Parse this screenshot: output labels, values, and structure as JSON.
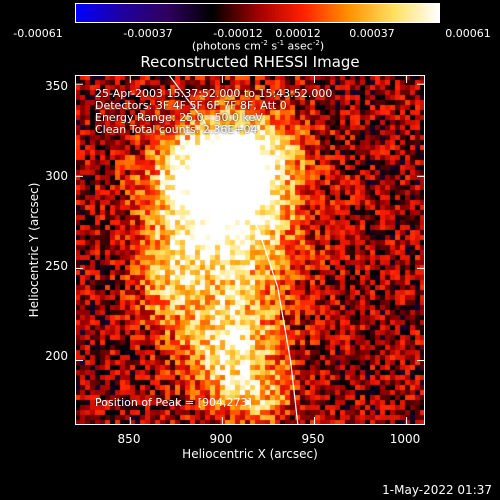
{
  "colorbar": {
    "ticks": [
      "-0.00061",
      "-0.00037",
      "-0.00012",
      "0.00012",
      "0.00037",
      "0.00061"
    ],
    "unit_prefix": "(photons cm",
    "unit_exp1": "-2",
    "unit_mid1": " s",
    "unit_exp2": "-1",
    "unit_mid2": " asec",
    "unit_exp3": "-2",
    "unit_suffix": ")",
    "stops": [
      "#0000ff",
      "#2000a0",
      "#300060",
      "#000000",
      "#a00000",
      "#ff2000",
      "#ff9000",
      "#ffe060",
      "#ffffff"
    ]
  },
  "info": {
    "line1": "25-Apr-2003 15:37:52.000 to 15:43:52.000",
    "line2": "Detectors: 3F 4F 5F 6F 7F 8F, Att 0",
    "line3": "Energy Range: 25.0 - 50.0 keV",
    "line4": "Clean   Total counts: 2.36E+04",
    "peak": "Position of Peak = [904,273]"
  },
  "timestamp": "1-May-2022 01:37",
  "chart_data": {
    "type": "heatmap",
    "title": "Reconstructed RHESSI Image",
    "xlabel": "Heliocentric X (arcsec)",
    "ylabel": "Heliocentric Y (arcsec)",
    "xlim": [
      820,
      1010
    ],
    "ylim": [
      165,
      355
    ],
    "x_ticks": [
      "850",
      "900",
      "950",
      "1000"
    ],
    "y_ticks": [
      "200",
      "250",
      "300",
      "350"
    ],
    "x_tick_values": [
      850,
      900,
      950,
      1000
    ],
    "y_tick_values": [
      200,
      250,
      300,
      350
    ],
    "zlim": [
      -0.00061,
      0.00061
    ],
    "peak_position": [
      904,
      273
    ],
    "sources": [
      {
        "x": 904,
        "y": 273,
        "sx": 25,
        "sy": 32,
        "amp": 0.00061
      },
      {
        "x": 912,
        "y": 312,
        "sx": 20,
        "sy": 18,
        "amp": 0.00048
      },
      {
        "x": 888,
        "y": 300,
        "sx": 22,
        "sy": 20,
        "amp": 0.0004
      },
      {
        "x": 905,
        "y": 205,
        "sx": 18,
        "sy": 20,
        "amp": 0.00052
      },
      {
        "x": 870,
        "y": 245,
        "sx": 12,
        "sy": 20,
        "amp": 0.0003
      },
      {
        "x": 920,
        "y": 180,
        "sx": 14,
        "sy": 10,
        "amp": 0.0003
      }
    ],
    "limb_curve": [
      [
        871,
        355
      ],
      [
        890,
        330
      ],
      [
        906,
        300
      ],
      [
        920,
        270
      ],
      [
        930,
        240
      ],
      [
        937,
        200
      ],
      [
        941,
        165
      ]
    ]
  }
}
